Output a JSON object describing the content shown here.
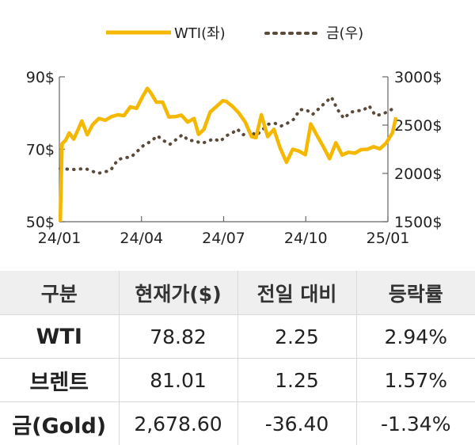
{
  "chart_data": {
    "type": "line",
    "title": "",
    "x_ticks": [
      "24/01",
      "24/04",
      "24/07",
      "24/10",
      "25/01"
    ],
    "y_left": {
      "ticks": [
        "90$",
        "70$",
        "50$"
      ],
      "range": [
        50,
        90
      ]
    },
    "y_right": {
      "ticks": [
        "3000$",
        "2500$",
        "2000$",
        "1500$"
      ],
      "range": [
        1500,
        3000
      ]
    },
    "legend_position": "top",
    "series": [
      {
        "name": "WTI(좌)",
        "axis": "left",
        "color": "#F5B800",
        "style": "solid",
        "x": [
          "2024-01-02",
          "2024-01-04",
          "2024-01-08",
          "2024-01-12",
          "2024-01-17",
          "2024-01-22",
          "2024-01-26",
          "2024-02-01",
          "2024-02-07",
          "2024-02-14",
          "2024-02-21",
          "2024-02-28",
          "2024-03-06",
          "2024-03-13",
          "2024-03-20",
          "2024-03-27",
          "2024-04-03",
          "2024-04-08",
          "2024-04-12",
          "2024-04-18",
          "2024-04-25",
          "2024-05-02",
          "2024-05-09",
          "2024-05-16",
          "2024-05-23",
          "2024-05-30",
          "2024-06-04",
          "2024-06-10",
          "2024-06-17",
          "2024-06-24",
          "2024-07-01",
          "2024-07-05",
          "2024-07-12",
          "2024-07-19",
          "2024-07-26",
          "2024-08-02",
          "2024-08-07",
          "2024-08-13",
          "2024-08-20",
          "2024-08-27",
          "2024-09-03",
          "2024-09-10",
          "2024-09-17",
          "2024-09-24",
          "2024-10-01",
          "2024-10-07",
          "2024-10-14",
          "2024-10-21",
          "2024-10-28",
          "2024-11-04",
          "2024-11-11",
          "2024-11-18",
          "2024-11-25",
          "2024-12-02",
          "2024-12-09",
          "2024-12-16",
          "2024-12-23",
          "2024-12-30",
          "2025-01-06",
          "2025-01-10"
        ],
        "values": [
          50,
          71.5,
          72.5,
          74.5,
          72.8,
          75.5,
          77.8,
          74.0,
          76.8,
          78.5,
          78.0,
          79.0,
          79.5,
          79.3,
          81.7,
          81.3,
          84.7,
          86.8,
          85.5,
          83.0,
          83.0,
          78.9,
          79.0,
          79.4,
          77.5,
          78.5,
          74.1,
          75.5,
          80.3,
          81.8,
          83.4,
          83.2,
          81.8,
          80.0,
          77.5,
          73.5,
          73.2,
          79.5,
          73.5,
          75.5,
          70.3,
          66.4,
          70.0,
          69.5,
          68.5,
          77.0,
          73.8,
          70.7,
          67.4,
          71.8,
          68.4,
          69.2,
          68.9,
          69.9,
          70.0,
          70.7,
          70.1,
          71.7,
          74.5,
          78.8
        ]
      },
      {
        "name": "금(우)",
        "axis": "right",
        "color": "#5A4A3A",
        "style": "dotted",
        "x": [
          "2024-01-02",
          "2024-01-16",
          "2024-01-30",
          "2024-02-13",
          "2024-02-27",
          "2024-03-06",
          "2024-03-12",
          "2024-03-21",
          "2024-03-28",
          "2024-04-05",
          "2024-04-12",
          "2024-04-19",
          "2024-04-26",
          "2024-05-03",
          "2024-05-10",
          "2024-05-17",
          "2024-05-24",
          "2024-05-31",
          "2024-06-07",
          "2024-06-14",
          "2024-06-21",
          "2024-06-28",
          "2024-07-05",
          "2024-07-12",
          "2024-07-17",
          "2024-07-24",
          "2024-07-31",
          "2024-08-07",
          "2024-08-14",
          "2024-08-21",
          "2024-08-28",
          "2024-09-04",
          "2024-09-11",
          "2024-09-18",
          "2024-09-25",
          "2024-10-02",
          "2024-10-09",
          "2024-10-16",
          "2024-10-23",
          "2024-10-30",
          "2024-11-06",
          "2024-11-13",
          "2024-11-20",
          "2024-11-27",
          "2024-12-04",
          "2024-12-11",
          "2024-12-18",
          "2024-12-25",
          "2025-01-03",
          "2025-01-10"
        ],
        "values": [
          2050,
          2040,
          2050,
          2000,
          2030,
          2140,
          2160,
          2170,
          2230,
          2300,
          2330,
          2390,
          2340,
          2300,
          2350,
          2400,
          2340,
          2340,
          2310,
          2330,
          2360,
          2330,
          2390,
          2420,
          2460,
          2400,
          2450,
          2390,
          2450,
          2510,
          2520,
          2490,
          2520,
          2560,
          2660,
          2660,
          2610,
          2670,
          2730,
          2790,
          2660,
          2570,
          2630,
          2650,
          2650,
          2700,
          2600,
          2610,
          2650,
          2690
        ]
      }
    ]
  },
  "table": {
    "headers": [
      "구분",
      "현재가($)",
      "전일 대비",
      "등락률"
    ],
    "rows": [
      {
        "name": "WTI",
        "price": "78.82",
        "change": "2.25",
        "rate": "2.94%"
      },
      {
        "name": "브렌트",
        "price": "81.01",
        "change": "1.25",
        "rate": "1.57%"
      },
      {
        "name": "금(Gold)",
        "price": "2,678.60",
        "change": "-36.40",
        "rate": "-1.34%"
      }
    ]
  }
}
